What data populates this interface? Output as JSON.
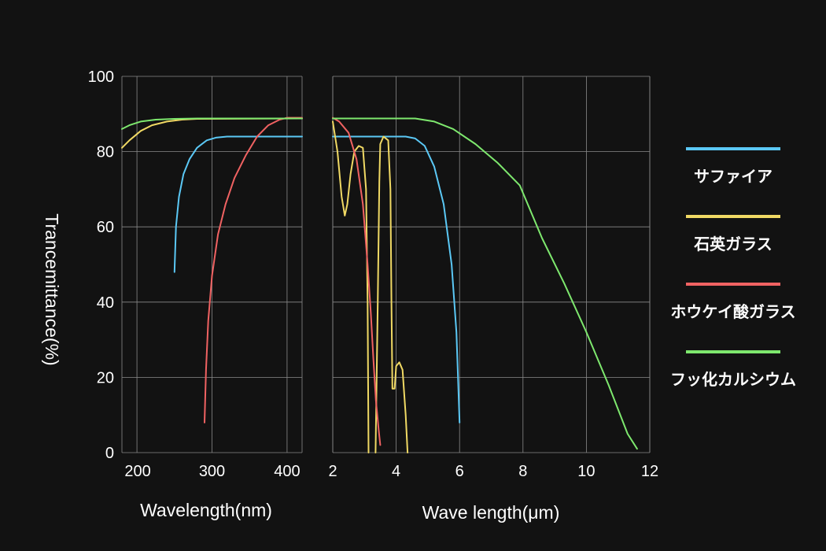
{
  "chart_data": {
    "type": "line",
    "ylabel": "Trancemittance(%)",
    "ylim": [
      0,
      100
    ],
    "yticks": [
      0,
      20,
      40,
      60,
      80,
      100
    ],
    "grid": true,
    "legend_position": "right",
    "panels": [
      {
        "xlabel": "Wavelength(nm)",
        "xlim": [
          180,
          420
        ],
        "xticks": [
          200,
          300,
          400
        ],
        "series": [
          {
            "name": "サファイア",
            "color": "#5bc8f5",
            "points": [
              [
                250,
                48
              ],
              [
                252,
                60
              ],
              [
                256,
                68
              ],
              [
                262,
                74
              ],
              [
                270,
                78
              ],
              [
                280,
                81
              ],
              [
                293,
                83
              ],
              [
                305,
                83.7
              ],
              [
                320,
                84
              ],
              [
                420,
                84
              ]
            ]
          },
          {
            "name": "石英ガラス",
            "color": "#f0d964",
            "points": [
              [
                180,
                81
              ],
              [
                190,
                83
              ],
              [
                205,
                85.5
              ],
              [
                220,
                87
              ],
              [
                240,
                88
              ],
              [
                260,
                88.5
              ],
              [
                280,
                88.7
              ],
              [
                420,
                88.8
              ]
            ]
          },
          {
            "name": "ホウケイ酸ガラス",
            "color": "#f06262",
            "points": [
              [
                290,
                8
              ],
              [
                292,
                22
              ],
              [
                295,
                35
              ],
              [
                300,
                47
              ],
              [
                308,
                58
              ],
              [
                318,
                66
              ],
              [
                330,
                73
              ],
              [
                345,
                79
              ],
              [
                360,
                84
              ],
              [
                375,
                87
              ],
              [
                390,
                88.5
              ],
              [
                400,
                89
              ],
              [
                420,
                89
              ]
            ]
          },
          {
            "name": "フッ化カルシウム",
            "color": "#7ee86e",
            "points": [
              [
                180,
                86
              ],
              [
                190,
                87
              ],
              [
                205,
                88
              ],
              [
                225,
                88.5
              ],
              [
                250,
                88.7
              ],
              [
                280,
                88.8
              ],
              [
                420,
                88.8
              ]
            ]
          }
        ]
      },
      {
        "xlabel": "Wave length(μm)",
        "xlim": [
          2,
          12
        ],
        "xticks": [
          2,
          4,
          6,
          8,
          10,
          12
        ],
        "series": [
          {
            "name": "サファイア",
            "color": "#5bc8f5",
            "points": [
              [
                2,
                84
              ],
              [
                4.3,
                84
              ],
              [
                4.6,
                83.5
              ],
              [
                4.9,
                81.5
              ],
              [
                5.2,
                76
              ],
              [
                5.5,
                66
              ],
              [
                5.75,
                50
              ],
              [
                5.9,
                32
              ],
              [
                6,
                8
              ]
            ]
          },
          {
            "name": "石英ガラス",
            "color": "#f0d964",
            "points": [
              [
                2,
                88
              ],
              [
                2.15,
                80
              ],
              [
                2.28,
                68
              ],
              [
                2.38,
                63
              ],
              [
                2.46,
                66
              ],
              [
                2.56,
                74
              ],
              [
                2.68,
                80
              ],
              [
                2.82,
                81.5
              ],
              [
                2.95,
                81
              ],
              [
                3.05,
                70
              ],
              [
                3.1,
                40
              ],
              [
                3.13,
                0
              ],
              null,
              [
                3.35,
                0
              ],
              [
                3.42,
                40
              ],
              [
                3.47,
                72
              ],
              [
                3.5,
                82
              ],
              [
                3.6,
                84
              ],
              [
                3.75,
                83
              ],
              [
                3.82,
                70
              ],
              [
                3.85,
                40
              ],
              [
                3.88,
                17
              ],
              [
                3.95,
                17
              ],
              [
                4.0,
                23
              ],
              [
                4.1,
                24
              ],
              [
                4.2,
                22
              ],
              [
                4.3,
                10
              ],
              [
                4.36,
                0
              ]
            ]
          },
          {
            "name": "ホウケイ酸ガラス",
            "color": "#f06262",
            "points": [
              [
                2,
                89
              ],
              [
                2.2,
                88
              ],
              [
                2.5,
                85
              ],
              [
                2.75,
                78
              ],
              [
                2.95,
                66
              ],
              [
                3.1,
                50
              ],
              [
                3.2,
                37
              ],
              [
                3.28,
                25
              ],
              [
                3.36,
                14
              ],
              [
                3.45,
                6
              ],
              [
                3.5,
                2
              ]
            ]
          },
          {
            "name": "フッ化カルシウム",
            "color": "#7ee86e",
            "points": [
              [
                2,
                88.8
              ],
              [
                4.6,
                88.8
              ],
              [
                5.2,
                88
              ],
              [
                5.8,
                86
              ],
              [
                6.5,
                82
              ],
              [
                7.2,
                77
              ],
              [
                7.9,
                71
              ],
              [
                8.6,
                57
              ],
              [
                9.3,
                45
              ],
              [
                10.0,
                32
              ],
              [
                10.7,
                18
              ],
              [
                11.3,
                5
              ],
              [
                11.6,
                1
              ]
            ]
          }
        ]
      }
    ]
  }
}
